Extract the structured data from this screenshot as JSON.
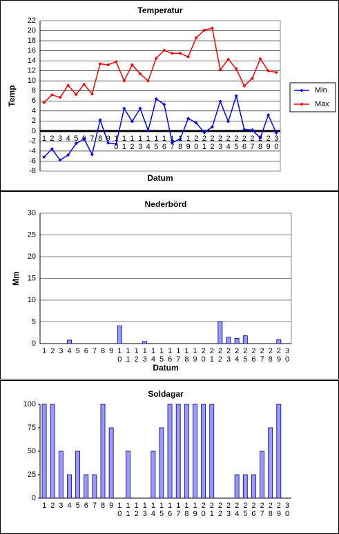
{
  "chart_data": [
    {
      "type": "line",
      "title": "Temperatur",
      "ylabel": "Temp",
      "xlabel": "Datum",
      "categories": [
        "1",
        "2",
        "3",
        "4",
        "5",
        "6",
        "7",
        "8",
        "9",
        "10",
        "11",
        "12",
        "13",
        "14",
        "15",
        "16",
        "17",
        "18",
        "19",
        "20",
        "21",
        "22",
        "23",
        "24",
        "25",
        "26",
        "27",
        "28",
        "29",
        "30"
      ],
      "series": [
        {
          "name": "Min",
          "color": "#0000ff",
          "values": [
            -5.2,
            -3.6,
            -5.8,
            -4.8,
            -2.5,
            -1.6,
            -4.7,
            2.2,
            -2.4,
            -2.6,
            4.5,
            1.9,
            4.5,
            0.1,
            6.4,
            5.3,
            -2.3,
            -1.6,
            2.5,
            1.6,
            -0.3,
            0.8,
            5.9,
            1.9,
            7.0,
            0.3,
            0.2,
            -1.4,
            3.2,
            -0.4
          ]
        },
        {
          "name": "Max",
          "color": "#ff0000",
          "values": [
            5.7,
            7.2,
            6.7,
            9.1,
            7.3,
            9.3,
            7.4,
            13.4,
            13.2,
            13.8,
            10.0,
            13.2,
            11.4,
            10.0,
            14.5,
            16.1,
            15.5,
            15.5,
            14.8,
            18.6,
            20.1,
            20.5,
            12.2,
            14.3,
            12.4,
            9.0,
            10.5,
            14.4,
            12.0,
            11.7
          ]
        }
      ],
      "ylim": [
        -8,
        22
      ],
      "yticks": [
        -8,
        -6,
        -4,
        -2,
        0,
        2,
        4,
        6,
        8,
        10,
        12,
        14,
        16,
        18,
        20,
        22
      ],
      "grid": true,
      "legend": "right"
    },
    {
      "type": "bar",
      "title": "Nederbörd",
      "ylabel": "Mm",
      "xlabel": "Datum",
      "categories": [
        "1",
        "2",
        "3",
        "4",
        "5",
        "6",
        "7",
        "8",
        "9",
        "10",
        "11",
        "12",
        "13",
        "14",
        "15",
        "16",
        "17",
        "18",
        "19",
        "20",
        "21",
        "22",
        "23",
        "24",
        "25",
        "26",
        "27",
        "28",
        "29",
        "30"
      ],
      "values": [
        0,
        0,
        0,
        0.8,
        0,
        0,
        0,
        0,
        0,
        4.1,
        0,
        0,
        0.5,
        0,
        0,
        0,
        0,
        0,
        0,
        0,
        0,
        5.1,
        1.5,
        1.2,
        1.8,
        0,
        0,
        0,
        0.9,
        0
      ],
      "color": "#9999ff",
      "ylim": [
        0,
        30
      ],
      "yticks": [
        0,
        5,
        10,
        15,
        20,
        25,
        30
      ],
      "grid": true
    },
    {
      "type": "bar",
      "title": "Soldagar",
      "categories": [
        "1",
        "2",
        "3",
        "4",
        "5",
        "6",
        "7",
        "8",
        "9",
        "10",
        "11",
        "12",
        "13",
        "14",
        "15",
        "16",
        "17",
        "18",
        "19",
        "20",
        "21",
        "22",
        "23",
        "24",
        "25",
        "26",
        "27",
        "28",
        "29",
        "30"
      ],
      "values": [
        100,
        100,
        50,
        25,
        50,
        25,
        25,
        100,
        75,
        0,
        50,
        0,
        0,
        50,
        75,
        100,
        100,
        100,
        100,
        100,
        100,
        0,
        0,
        25,
        25,
        25,
        50,
        75,
        100,
        0
      ],
      "color": "#9999ff",
      "ylim": [
        0,
        100
      ],
      "yticks": [
        0,
        25,
        50,
        75,
        100
      ],
      "grid": false
    }
  ]
}
